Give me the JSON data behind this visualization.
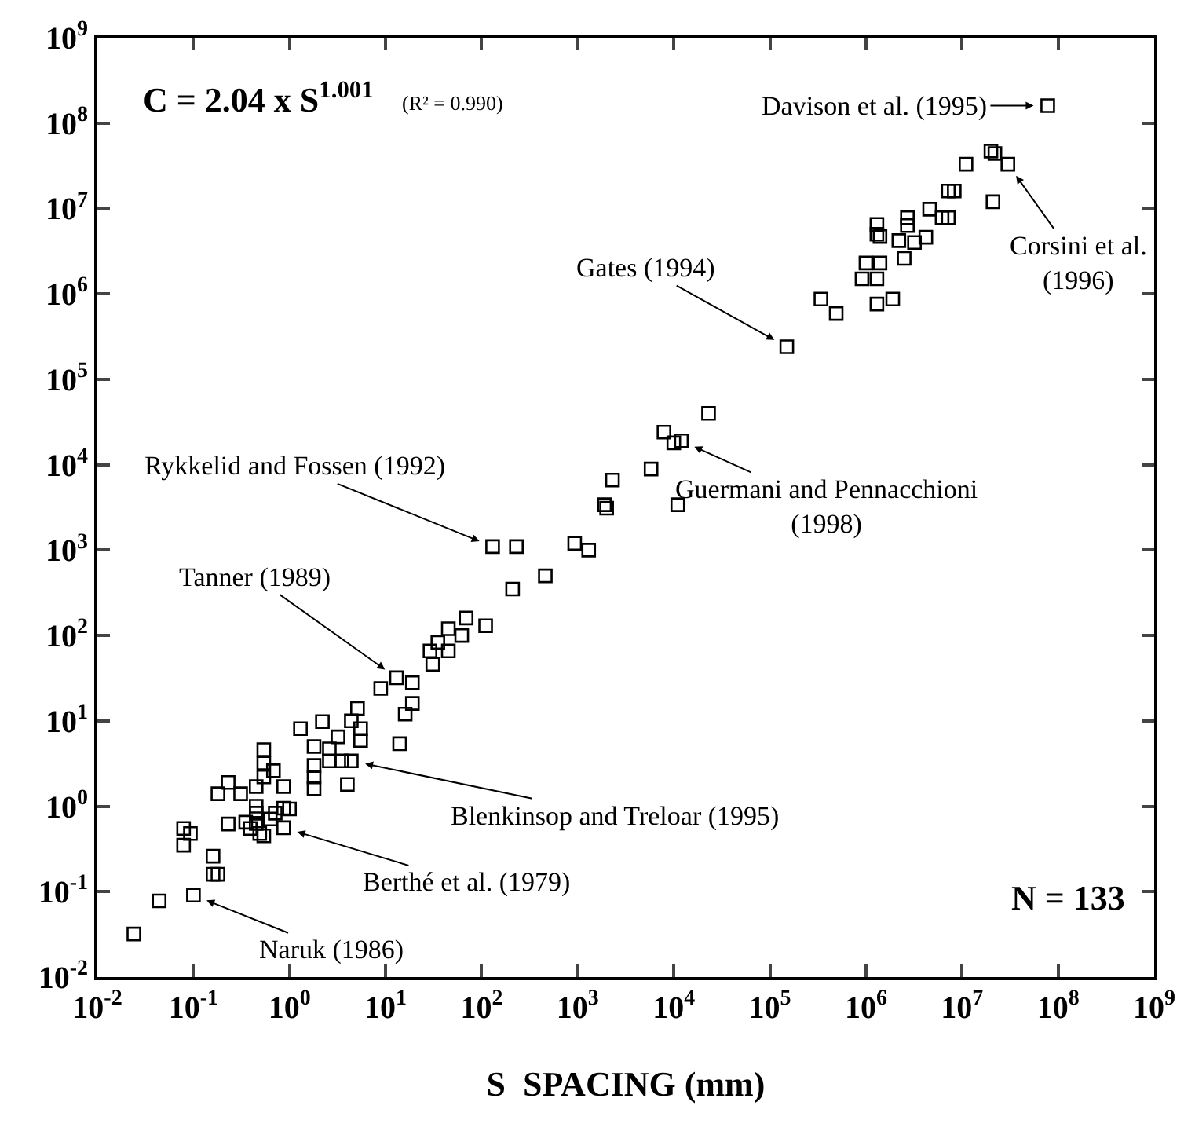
{
  "chart_data": {
    "type": "scatter",
    "xlabel": "S  SPACING (mm)",
    "log": "xy",
    "grid": false,
    "marker": "square",
    "xlim": [
      0.01,
      1000000000
    ],
    "ylim": [
      0.01,
      1000000000
    ],
    "xticks": [
      {
        "value": 0.01,
        "label": "10$^{-2}$"
      },
      {
        "value": 0.1,
        "label": "10$^{-1}$"
      },
      {
        "value": 1,
        "label": "10$^{0}$"
      },
      {
        "value": 10,
        "label": "10$^{1}$"
      },
      {
        "value": 100,
        "label": "10$^{2}$"
      },
      {
        "value": 1000,
        "label": "10$^{3}$"
      },
      {
        "value": 10000,
        "label": "10$^{4}$"
      },
      {
        "value": 100000,
        "label": "10$^{5}$"
      },
      {
        "value": 1000000,
        "label": "10$^{6}$"
      },
      {
        "value": 10000000,
        "label": "10$^{7}$"
      },
      {
        "value": 100000000,
        "label": "10$^{8}$"
      },
      {
        "value": 1000000000,
        "label": "10$^{9}$"
      }
    ],
    "yticks": [
      {
        "value": 0.01,
        "label": "10$^{-2}$"
      },
      {
        "value": 0.1,
        "label": "10$^{-1}$"
      },
      {
        "value": 1,
        "label": "10$^{0}$"
      },
      {
        "value": 10,
        "label": "10$^{1}$"
      },
      {
        "value": 100,
        "label": "10$^{2}$"
      },
      {
        "value": 1000,
        "label": "10$^{3}$"
      },
      {
        "value": 10000,
        "label": "10$^{4}$"
      },
      {
        "value": 100000,
        "label": "10$^{5}$"
      },
      {
        "value": 1000000,
        "label": "10$^{6}$"
      },
      {
        "value": 10000000,
        "label": "10$^{7}$"
      },
      {
        "value": 100000000,
        "label": "10$^{8}$"
      },
      {
        "value": 1000000000,
        "label": "10$^{9}$"
      }
    ],
    "series": [
      {
        "color": "#000000",
        "x": [
          0.024,
          0.044,
          0.1,
          0.079,
          0.079,
          0.093,
          0.16,
          0.16,
          0.18,
          0.18,
          0.23,
          0.31,
          0.23,
          0.35,
          0.39,
          0.45,
          0.45,
          0.45,
          0.45,
          0.49,
          0.54,
          0.54,
          0.54,
          0.68,
          0.63,
          0.71,
          0.87,
          0.87,
          1.0,
          0.87,
          0.54,
          1.3,
          1.8,
          1.8,
          1.8,
          1.8,
          2.2,
          2.6,
          3.2,
          2.6,
          3.5,
          4.4,
          4.0,
          4.4,
          5.1,
          5.5,
          5.5,
          8.9,
          13,
          19,
          19,
          16,
          14,
          29,
          31,
          35,
          45,
          45,
          62,
          69,
          110,
          130,
          230,
          210,
          460,
          930,
          1300,
          1900,
          2000,
          2300,
          5800,
          7900,
          10000,
          12000,
          11000,
          23000,
          150000,
          340000,
          490000,
          1300000,
          1300000,
          1400000,
          1000000,
          1400000,
          910000,
          1300000,
          1300000,
          1900000,
          2200000,
          2700000,
          2700000,
          2500000,
          3200000,
          4200000,
          4600000,
          6200000,
          7200000,
          7200000,
          8300000,
          11000000,
          20000000,
          22000000,
          30000000,
          21000000,
          78000000
        ],
        "values": [
          0.032,
          0.078,
          0.091,
          0.55,
          0.35,
          0.48,
          0.26,
          0.16,
          0.16,
          1.4,
          1.9,
          1.4,
          0.62,
          0.65,
          0.55,
          1.7,
          1.0,
          0.83,
          0.63,
          0.48,
          4.6,
          3.2,
          2.2,
          2.6,
          0.71,
          0.83,
          1.7,
          0.95,
          0.93,
          0.56,
          0.45,
          8.1,
          5.0,
          3.0,
          2.2,
          1.6,
          9.8,
          4.7,
          6.5,
          3.4,
          3.4,
          3.4,
          1.8,
          10,
          14,
          8.1,
          5.9,
          24,
          32,
          28,
          16,
          12,
          5.4,
          66,
          46,
          83,
          66,
          120,
          100,
          160,
          130,
          1100,
          1100,
          350,
          500,
          1200,
          1000,
          3400,
          3100,
          6600,
          8900,
          24000,
          18000,
          19000,
          3400,
          40000,
          240000,
          870000,
          590000,
          6500000,
          5000000,
          4700000,
          2300000,
          2300000,
          1500000,
          1500000,
          760000,
          870000,
          4200000,
          7800000,
          6300000,
          2600000,
          4000000,
          4600000,
          9800000,
          7800000,
          7800000,
          16000000,
          16000000,
          33000000,
          47000000,
          44000000,
          33000000,
          12000000,
          160000000
        ]
      }
    ],
    "annotations": [
      {
        "text": "Naruk (1986)",
        "x": 0.1,
        "y": 0.091
      },
      {
        "text": "Berthé et al. (1979)",
        "x": 0.87,
        "y": 0.56
      },
      {
        "text": "Blenkinsop and Treloar (1995)",
        "x": 4.4,
        "y": 3.4
      },
      {
        "text": "Tanner (1989)",
        "x": 13,
        "y": 32
      },
      {
        "text": "Rykkelid and Fossen (1992)",
        "x": 130,
        "y": 1100
      },
      {
        "text": "Guermani and Pennacchioni\n(1998)",
        "x": 12000,
        "y": 19000
      },
      {
        "text": "Gates (1994)",
        "x": 150000,
        "y": 240000
      },
      {
        "text": "Davison et al. (1995)",
        "x": 78000000,
        "y": 160000000
      },
      {
        "text": "Corsini et al.\n(1996)",
        "x": 30000000,
        "y": 33000000
      },
      "C = 2.04 x S$^{1.001}$",
      "(R² = 0.990)",
      "N = 133"
    ]
  }
}
